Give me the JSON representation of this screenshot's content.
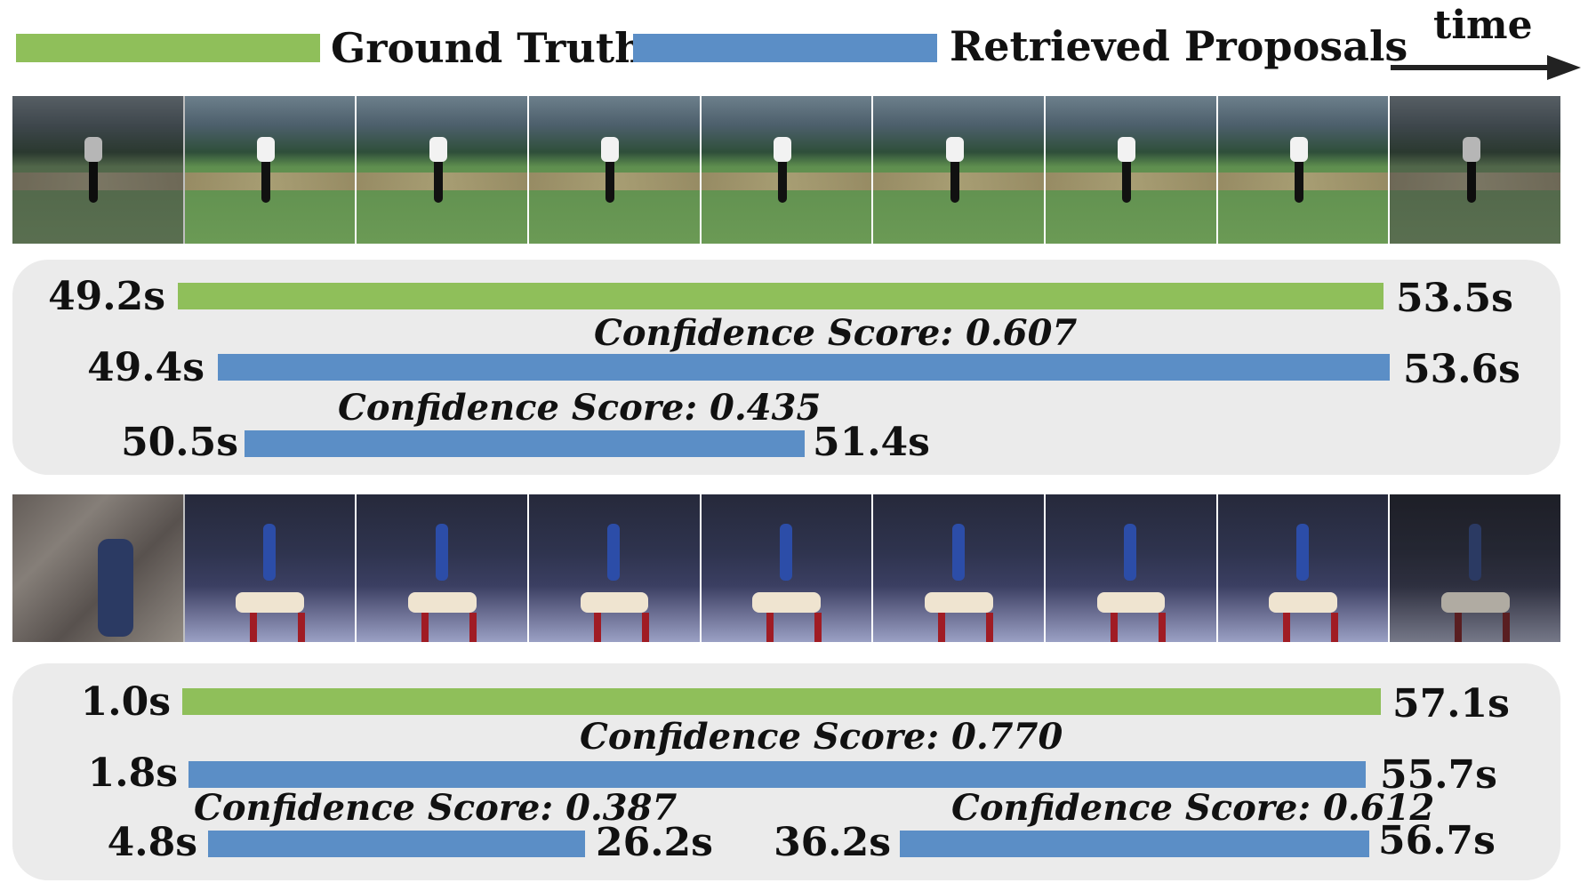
{
  "legend": {
    "ground_truth_label": "Ground Truth",
    "retrieved_label": "Retrieved Proposals",
    "time_label": "time",
    "ground_truth_color": "#8fbf5a",
    "retrieved_color": "#5b8ec6"
  },
  "example1": {
    "ground_truth": {
      "start": "49.2s",
      "end": "53.5s"
    },
    "proposals": [
      {
        "start": "49.4s",
        "end": "53.6s",
        "score": "Confidence Score: 0.607"
      },
      {
        "start": "50.5s",
        "end": "51.4s",
        "score": "Confidence Score: 0.435"
      }
    ]
  },
  "example2": {
    "ground_truth": {
      "start": "1.0s",
      "end": "57.1s"
    },
    "proposals": [
      {
        "start": "1.8s",
        "end": "55.7s",
        "score": "Confidence Score: 0.770"
      },
      {
        "start": "4.8s",
        "end": "26.2s",
        "score": "Confidence Score: 0.387"
      },
      {
        "start": "36.2s",
        "end": "56.7s",
        "score": "Confidence Score: 0.612"
      }
    ]
  }
}
